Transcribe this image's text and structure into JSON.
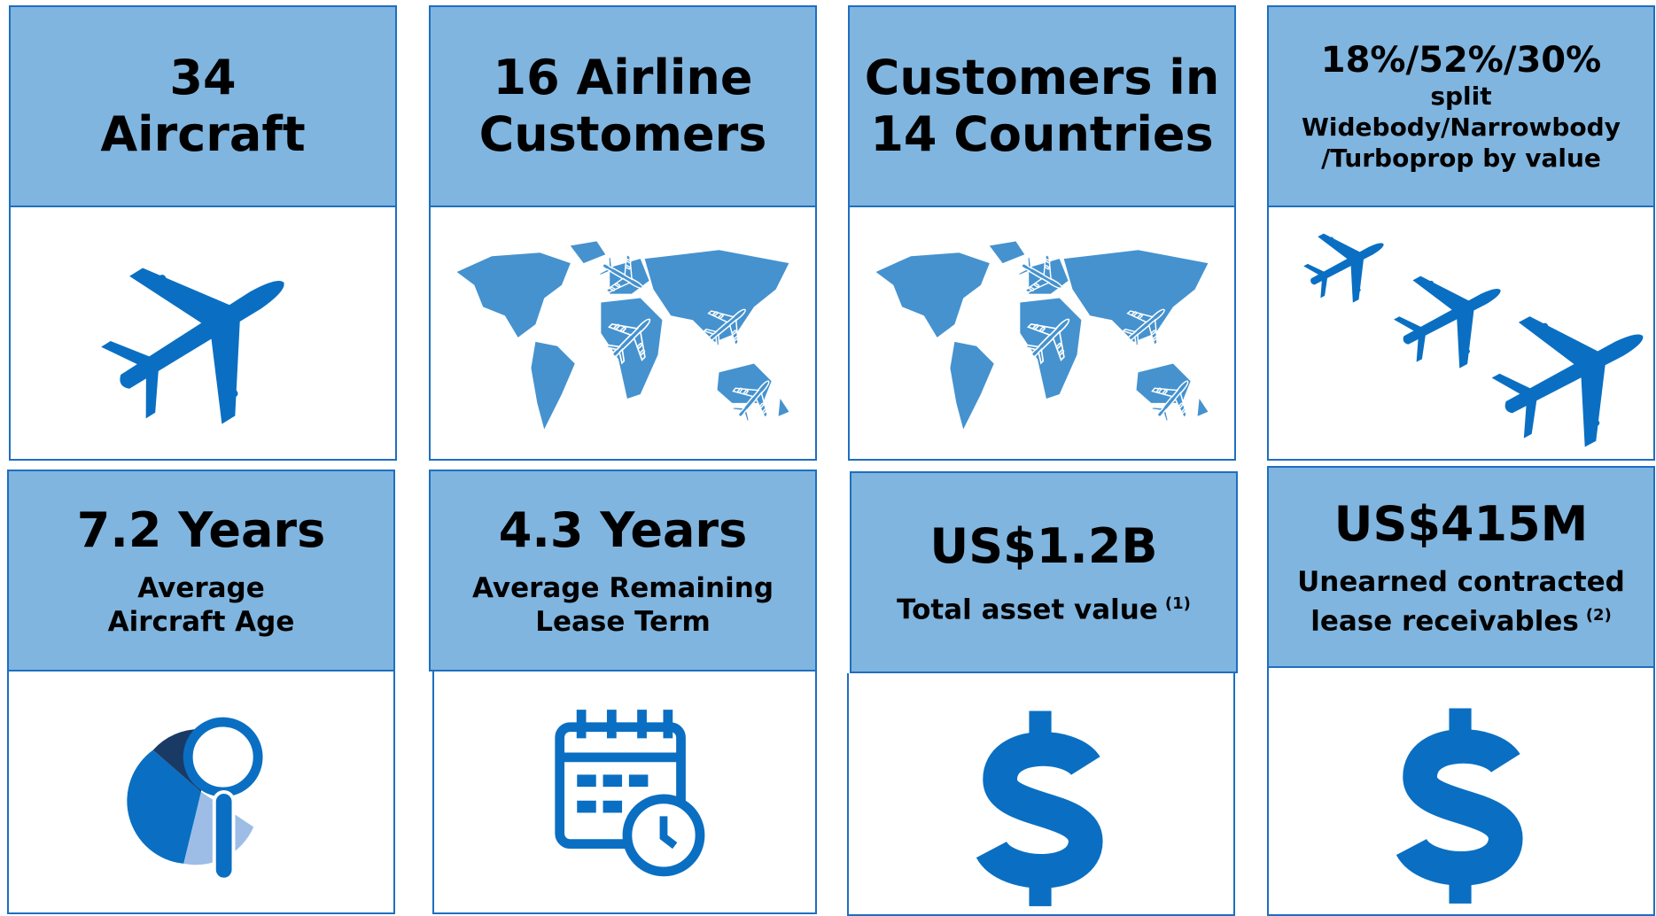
{
  "tiles": [
    {
      "title": [
        "34",
        "Aircraft"
      ]
    },
    {
      "title": [
        "16 Airline",
        "Customers"
      ]
    },
    {
      "title": [
        "Customers in",
        "14 Countries"
      ]
    },
    {
      "title": [
        "18%/52%/30%"
      ],
      "subtitle": [
        "split",
        "Widebody/Narrowbody",
        "/Turboprop by value"
      ]
    },
    {
      "title": [
        "7.2 Years"
      ],
      "subtitle": [
        "Average",
        "Aircraft Age"
      ]
    },
    {
      "title": [
        "4.3 Years"
      ],
      "subtitle": [
        "Average Remaining",
        "Lease Term"
      ]
    },
    {
      "title": [
        "US$1.2B"
      ],
      "subtitle": [
        "Total asset value"
      ],
      "note": "(1)"
    },
    {
      "title": [
        "US$415M"
      ],
      "subtitle": [
        "Unearned contracted",
        "lease receivables"
      ],
      "note": "(2)"
    }
  ]
}
